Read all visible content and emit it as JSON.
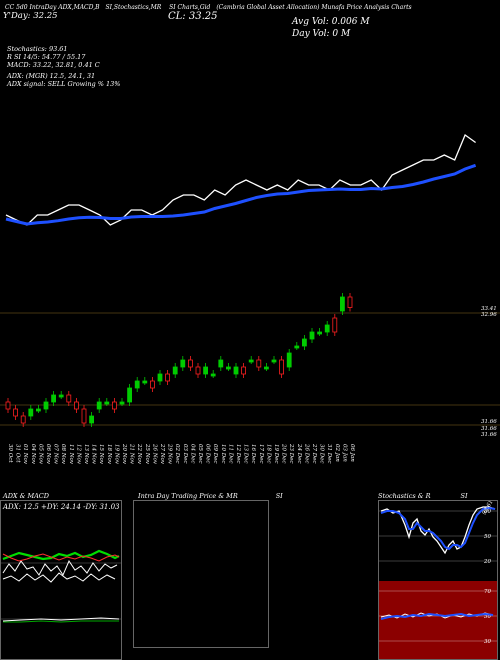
{
  "header": {
    "line1": [
      "CC 5d0 IntraDay ADX,MACD,B",
      "SI,Stochastics,MR",
      "SI Charts,Gid",
      "(Cambria Global Asset Allocation) Munafa Price Analysis Charts"
    ],
    "close": "CL: 33.25",
    "prev": "Y'Day: 32.25",
    "avg_vol": "Avg Vol: 0.006  M",
    "day_vol": "Day Vol: 0   M"
  },
  "indicators": {
    "stochastics": "Stochastics: 93.61",
    "rsi": "R           SI 14/5: 54.77 / 55.17",
    "macd": "MACD: 33.22,  32.81,  0.41 C",
    "adx": "ADX:                          (MGR) 12.5,  24.1,  31",
    "adx_signal": "ADX  signal: SELL Growing % 13%"
  },
  "price_labels": {
    "top": "33.41",
    "top2": "32.96",
    "low1": "31.66",
    "low2": "31.66",
    "low3": "31.66"
  },
  "dates": [
    "30 Oct",
    "31 Oct",
    "01 Nov",
    "04 Nov",
    "05 Nov",
    "06 Nov",
    "07 Nov",
    "08 Nov",
    "11 Nov",
    "12 Nov",
    "13 Nov",
    "14 Nov",
    "15 Nov",
    "18 Nov",
    "19 Nov",
    "20 Nov",
    "21 Nov",
    "22 Nov",
    "25 Nov",
    "26 Nov",
    "27 Nov",
    "29 Nov",
    "02 Dec",
    "03 Dec",
    "04 Dec",
    "05 Dec",
    "06 Dec",
    "09 Dec",
    "10 Dec",
    "11 Dec",
    "12 Dec",
    "13 Dec",
    "16 Dec",
    "17 Dec",
    "18 Dec",
    "19 Dec",
    "20 Dec",
    "23 Dec",
    "24 Dec",
    "26 Dec",
    "27 Dec",
    "30 Dec",
    "31 Dec",
    "02 Jan",
    "03 Jan",
    "06 Jan"
  ],
  "panels": {
    "adx_macd": {
      "title": "ADX  & MACD",
      "values": "ADX: 12.5 +DY: 24.14  -DY: 31.03"
    },
    "intraday": {
      "title": "Intra  Day Trading Price  & MR",
      "title_suffix": "SI"
    },
    "stoch": {
      "title": "Stochastics & R",
      "title_suffix": "SI",
      "levels": [
        "80",
        "50",
        "20"
      ],
      "rsi_levels": [
        "70",
        "50",
        "30"
      ],
      "tag": "93.61"
    }
  },
  "colors": {
    "up": "#00cc00",
    "down": "#ff2020",
    "ma": "#1e50ff",
    "price": "#ffffff",
    "rsi_bg": "#8b0000"
  },
  "chart_data": {
    "type": "candlestick",
    "x": [
      "30 Oct",
      "31 Oct",
      "01 Nov",
      "04 Nov",
      "05 Nov",
      "06 Nov",
      "07 Nov",
      "08 Nov",
      "11 Nov",
      "12 Nov",
      "13 Nov",
      "14 Nov",
      "15 Nov",
      "18 Nov",
      "19 Nov",
      "20 Nov",
      "21 Nov",
      "22 Nov",
      "25 Nov",
      "26 Nov",
      "27 Nov",
      "29 Nov",
      "02 Dec",
      "03 Dec",
      "04 Dec",
      "05 Dec",
      "06 Dec",
      "09 Dec",
      "10 Dec",
      "11 Dec",
      "12 Dec",
      "13 Dec",
      "16 Dec",
      "17 Dec",
      "18 Dec",
      "19 Dec",
      "20 Dec",
      "23 Dec",
      "24 Dec",
      "26 Dec",
      "27 Dec",
      "30 Dec",
      "31 Dec",
      "02 Jan",
      "03 Jan",
      "06 Jan"
    ],
    "open": [
      31.9,
      31.8,
      31.7,
      31.7,
      31.8,
      31.8,
      31.9,
      32.0,
      32.0,
      31.9,
      31.8,
      31.6,
      31.8,
      31.9,
      31.9,
      31.9,
      31.9,
      32.1,
      32.2,
      32.2,
      32.2,
      32.3,
      32.3,
      32.4,
      32.5,
      32.4,
      32.3,
      32.3,
      32.4,
      32.4,
      32.3,
      32.4,
      32.5,
      32.5,
      32.4,
      32.5,
      32.5,
      32.4,
      32.7,
      32.7,
      32.8,
      32.9,
      32.9,
      33.1,
      33.2,
      33.4
    ],
    "close": [
      31.8,
      31.7,
      31.6,
      31.8,
      31.8,
      31.9,
      32.0,
      32.0,
      31.9,
      31.8,
      31.6,
      31.7,
      31.9,
      31.9,
      31.8,
      31.9,
      32.1,
      32.2,
      32.2,
      32.1,
      32.3,
      32.2,
      32.4,
      32.5,
      32.4,
      32.3,
      32.4,
      32.3,
      32.5,
      32.4,
      32.4,
      32.3,
      32.5,
      32.4,
      32.4,
      32.5,
      32.3,
      32.6,
      32.7,
      32.8,
      32.9,
      32.9,
      33.0,
      32.9,
      33.4,
      33.25
    ]
  }
}
